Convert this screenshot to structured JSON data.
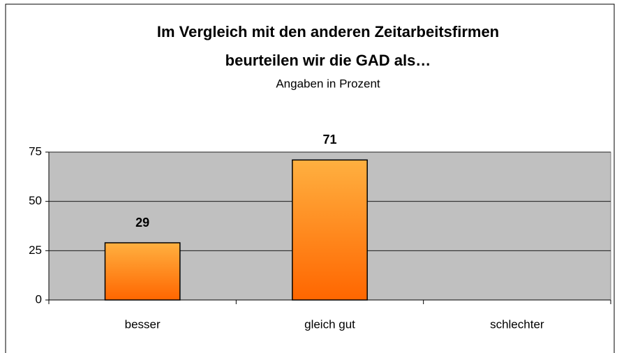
{
  "chart_data": {
    "type": "bar",
    "title": [
      "Im Vergleich mit den anderen Zeitarbeitsfirmen",
      "beurteilen wir die GAD als…"
    ],
    "subtitle": "Angaben in Prozent",
    "categories": [
      "besser",
      "gleich gut",
      "schlechter"
    ],
    "values": [
      29,
      71,
      null
    ],
    "color": "#ff7a10",
    "ylim": [
      0,
      75
    ],
    "yticks": [
      0,
      25,
      50,
      75
    ],
    "grid": true
  }
}
